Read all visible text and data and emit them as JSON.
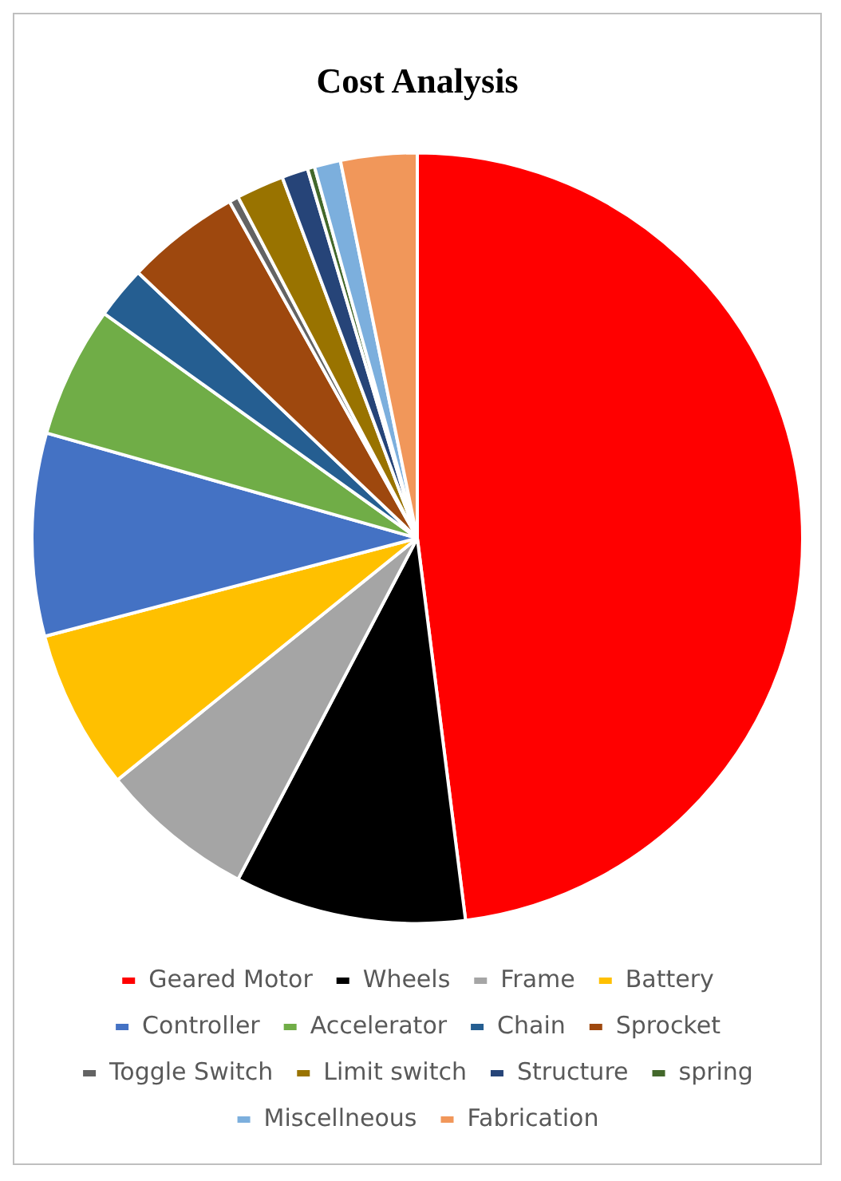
{
  "chart_data": {
    "type": "pie",
    "title": "Cost Analysis",
    "categories": [
      "Geared Motor",
      "Wheels",
      "Frame",
      "Battery",
      "Controller",
      "Accelerator",
      "Chain",
      "Sprocket",
      "Toggle Switch",
      "Limit switch",
      "Structure",
      "spring",
      "Miscellneous",
      "Fabrication"
    ],
    "values": [
      48,
      9.7,
      6.5,
      6.7,
      8.5,
      5.5,
      2.2,
      4.8,
      0.4,
      2,
      1.1,
      0.3,
      1.1,
      3.2
    ],
    "colors": [
      "#ff0000",
      "#000000",
      "#a5a5a5",
      "#ffc000",
      "#4472c4",
      "#70ad47",
      "#255e91",
      "#9e480e",
      "#636363",
      "#997300",
      "#264478",
      "#43682b",
      "#7cafdd",
      "#f1975a"
    ],
    "legend": "bottom"
  }
}
